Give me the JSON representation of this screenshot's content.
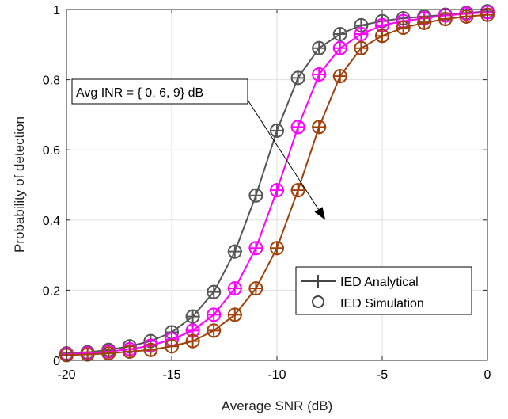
{
  "chart_data": {
    "type": "line",
    "xlabel": "Average SNR (dB)",
    "ylabel": "Probability of detection",
    "xlim": [
      -20,
      0
    ],
    "ylim": [
      0,
      1
    ],
    "x_ticks": [
      "-20",
      "-15",
      "-10",
      "-5",
      "0"
    ],
    "y_ticks": [
      "0",
      "0.2",
      "0.4",
      "0.6",
      "0.8",
      "1"
    ],
    "grid": true,
    "x": [
      -20,
      -19,
      -18,
      -17,
      -16,
      -15,
      -14,
      -13,
      -12,
      -11,
      -10,
      -9,
      -8,
      -7,
      -6,
      -5,
      -4,
      -3,
      -2,
      -1,
      0
    ],
    "series": [
      {
        "color": "#555555",
        "values": [
          0.02,
          0.023,
          0.03,
          0.04,
          0.055,
          0.08,
          0.125,
          0.195,
          0.31,
          0.47,
          0.655,
          0.805,
          0.89,
          0.93,
          0.955,
          0.967,
          0.975,
          0.98,
          0.985,
          0.99,
          0.995
        ]
      },
      {
        "color": "#ff00ff",
        "values": [
          0.018,
          0.02,
          0.025,
          0.032,
          0.042,
          0.06,
          0.085,
          0.13,
          0.205,
          0.32,
          0.485,
          0.665,
          0.815,
          0.89,
          0.93,
          0.955,
          0.967,
          0.975,
          0.983,
          0.988,
          0.992
        ]
      },
      {
        "color": "#a0400a",
        "values": [
          0.015,
          0.017,
          0.02,
          0.025,
          0.03,
          0.04,
          0.055,
          0.085,
          0.13,
          0.205,
          0.32,
          0.485,
          0.665,
          0.81,
          0.89,
          0.925,
          0.948,
          0.962,
          0.973,
          0.98,
          0.985
        ]
      }
    ],
    "legend": {
      "position": "bottom-right",
      "entries": [
        {
          "label": "IED Analytical",
          "marker": "plus",
          "line": true
        },
        {
          "label": "IED Simulation",
          "marker": "circle",
          "line": false
        }
      ]
    },
    "annotation": {
      "text": "Avg INR = { 0, 6, 9} dB",
      "arrow_from": [
        -11.8,
        0.78
      ],
      "arrow_to": [
        -7.7,
        0.4
      ]
    }
  }
}
